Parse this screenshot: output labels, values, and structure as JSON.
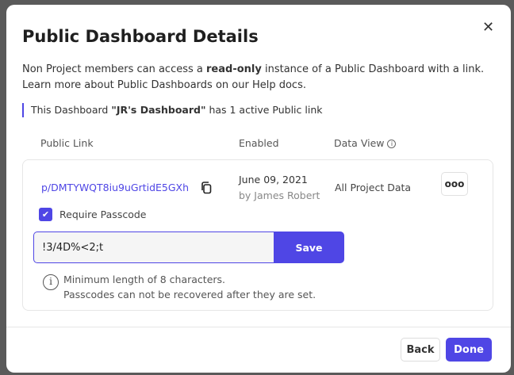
{
  "dialog": {
    "title": "Public Dashboard Details",
    "close_icon": "close-icon",
    "desc_pre": "Non Project members can access a ",
    "desc_bold": "read-only",
    "desc_post": " instance of a Public Dashboard with a link.",
    "desc_line2": "Learn more about Public Dashboards on our Help docs.",
    "note_pre": "This Dashboard ",
    "note_bold": "\"JR's Dashboard\"",
    "note_post": " has 1 active Public link"
  },
  "table": {
    "headers": [
      "Public Link",
      "Enabled",
      "Data View"
    ],
    "row": {
      "link": "p/DMTYWQT8iu9uGrtidE5GXh",
      "date": "June 09, 2021",
      "by": "by James Robert",
      "data_view": "All Project Data",
      "more": "ooo"
    },
    "require_passcode_label": "Require Passcode",
    "require_passcode_checked": true,
    "passcode_value": "!3/4D%<2;t",
    "save_label": "Save",
    "hint_line1": "Minimum length of 8 characters.",
    "hint_line2": "Passcodes can not be recovered after they are set."
  },
  "footer": {
    "back_label": "Back",
    "done_label": "Done"
  },
  "colors": {
    "accent": "#4f46e5"
  }
}
